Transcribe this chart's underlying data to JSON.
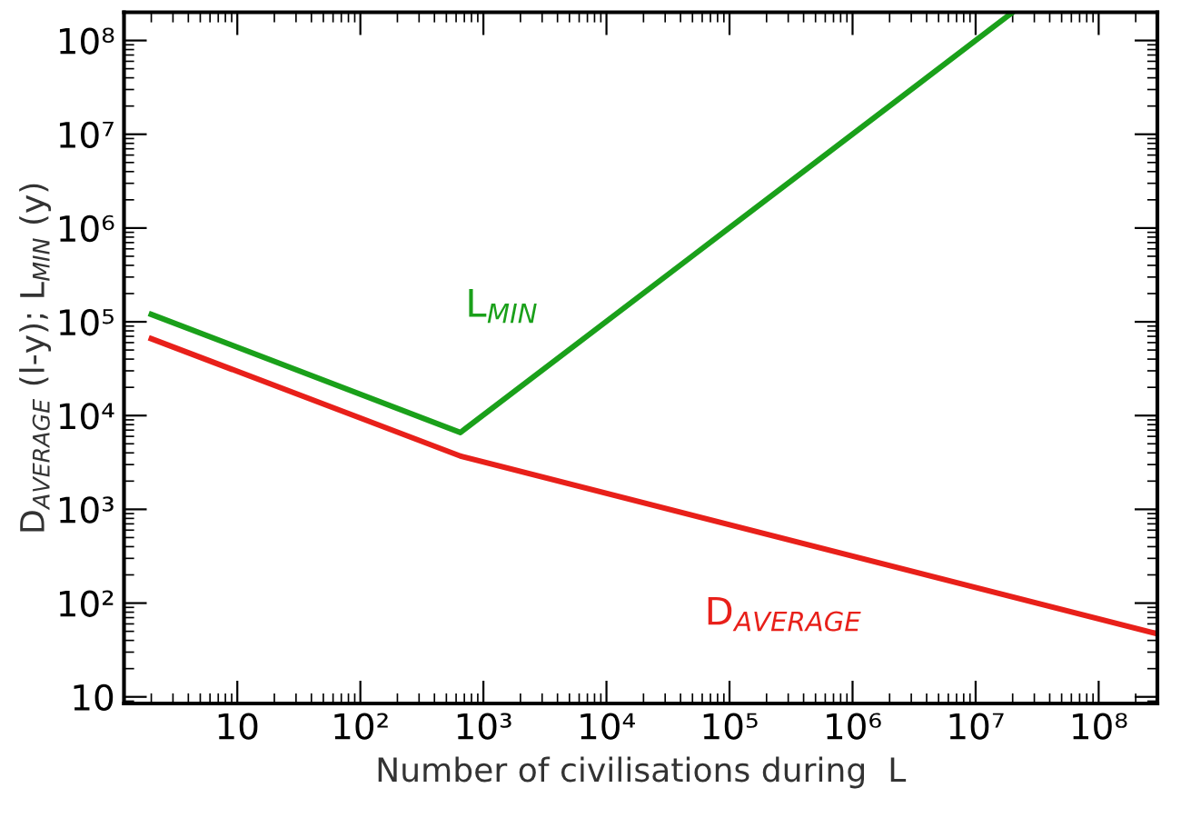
{
  "chart_data": {
    "type": "line",
    "xlabel": "Number of civilisations during  L",
    "ylabel": "D$_{AVERAGE}$ (l-y); L$_{MIN}$ (y)",
    "series": [
      {
        "name": "L$_{MIN}$",
        "color": "#1aa01a",
        "x": [
          2,
          650,
          20000000
        ],
        "values": [
          120000,
          6600,
          200000000
        ]
      },
      {
        "name": "D$_{AVERAGE}$",
        "color": "#e8201a",
        "x": [
          2,
          650,
          300000000
        ],
        "values": [
          66000,
          3700,
          47
        ]
      }
    ],
    "log": "xy",
    "xlim": [
      1.2,
      300000000
    ],
    "ylim": [
      8.5,
      200000000
    ],
    "xticks": [
      10,
      {
        "value": 100,
        "label": "10²"
      },
      {
        "value": 1000,
        "label": "10³"
      },
      {
        "value": 10000,
        "label": "10⁴"
      },
      {
        "value": 100000,
        "label": "10⁵"
      },
      {
        "value": 1000000,
        "label": "10⁶"
      },
      {
        "value": 10000000,
        "label": "10⁷"
      },
      {
        "value": 100000000,
        "label": "10⁸"
      }
    ],
    "yticks": [
      10,
      {
        "value": 100,
        "label": "10²"
      },
      {
        "value": 1000,
        "label": "10³"
      },
      {
        "value": 10000,
        "label": "10⁴"
      },
      {
        "value": 100000,
        "label": "10⁵"
      },
      {
        "value": 1000000,
        "label": "10⁶"
      },
      {
        "value": 10000000,
        "label": "10⁷"
      },
      {
        "value": 100000000,
        "label": "10⁸"
      }
    ],
    "grid": false,
    "legend": false,
    "line_style": "solid",
    "marker": "none"
  }
}
